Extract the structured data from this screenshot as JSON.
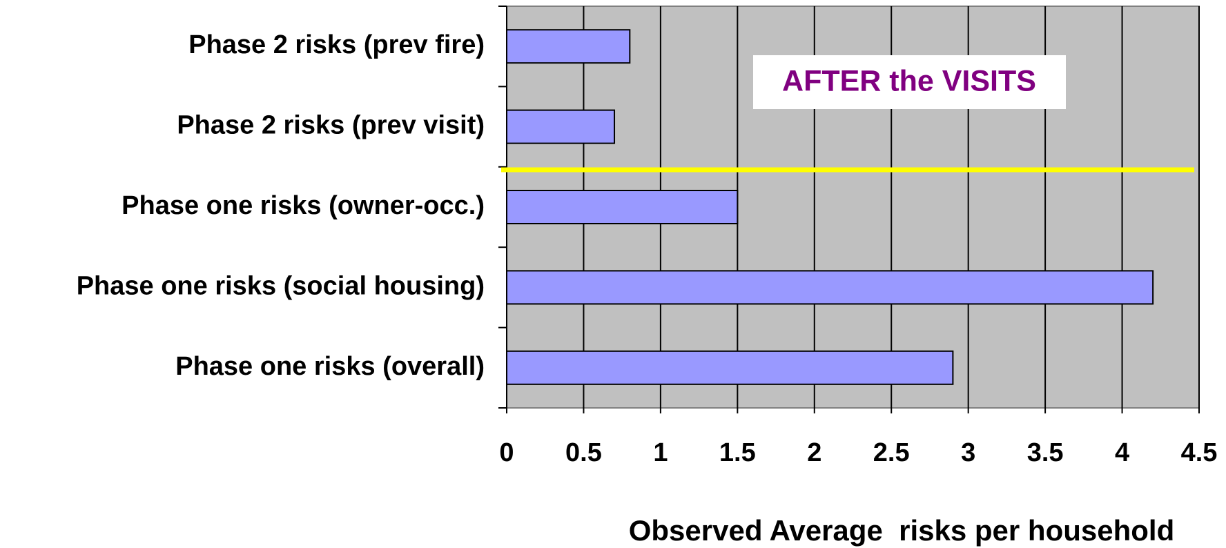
{
  "chart_data": {
    "type": "bar",
    "orientation": "horizontal",
    "categories": [
      "Phase 2 risks (prev fire)",
      "Phase 2 risks (prev visit)",
      "Phase one risks (owner-occ.)",
      "Phase one risks (social housing)",
      "Phase one risks (overall)"
    ],
    "values": [
      0.8,
      0.7,
      1.5,
      4.2,
      2.9
    ],
    "color": "#9999ff",
    "xlabel": "Observed Average  risks per household",
    "annotation": "AFTER the VISITS",
    "xlim": [
      0,
      4.5
    ],
    "xticks": [
      0,
      0.5,
      1,
      1.5,
      2,
      2.5,
      3,
      3.5,
      4,
      4.5
    ],
    "grid": true
  }
}
